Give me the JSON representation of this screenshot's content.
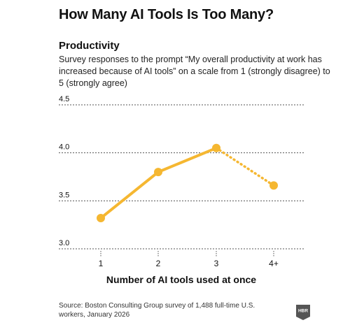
{
  "title": "How Many AI Tools Is Too Many?",
  "subtitle": "Productivity",
  "description": "Survey responses to the prompt “My overall productivity at work has increased because of AI tools” on a scale from 1 (strongly disagree) to 5 (strongly agree)",
  "source": "Source: Boston Consulting Group survey of 1,488 full-time U.S. workers, January 2026",
  "logo_text": "HBR",
  "colors": {
    "series": "#f5b731",
    "grid": "#555555",
    "text": "#111111",
    "logo": "#555555"
  },
  "chart_data": {
    "type": "line",
    "title": "How Many AI Tools Is Too Many?",
    "subtitle": "Productivity",
    "xlabel": "Number of AI tools used at once",
    "ylabel": "",
    "categories": [
      "1",
      "2",
      "3",
      "4+"
    ],
    "values": [
      3.32,
      3.8,
      4.05,
      3.66
    ],
    "dotted_last_segment": true,
    "ylim": [
      3.0,
      4.5
    ],
    "yticks": [
      "3.0",
      "3.5",
      "4.0",
      "4.5"
    ],
    "grid": "horizontal-dashed",
    "legend": "none"
  }
}
